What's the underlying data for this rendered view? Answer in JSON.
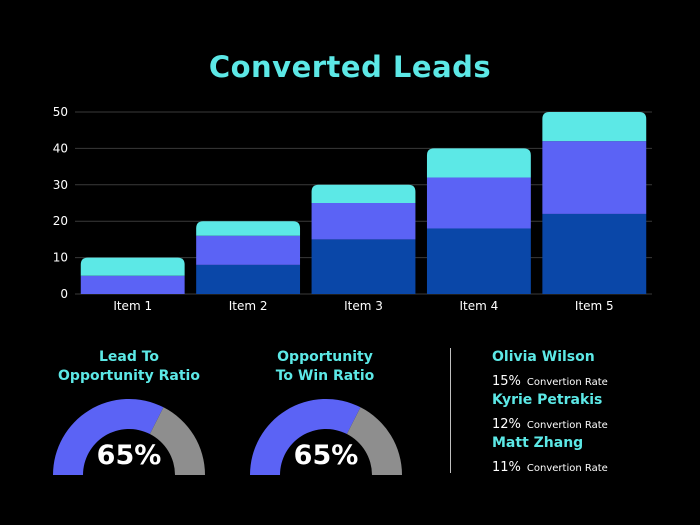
{
  "chart_data": {
    "type": "bar",
    "stacked": true,
    "title": "Converted Leads",
    "categories": [
      "Item 1",
      "Item 2",
      "Item 3",
      "Item 4",
      "Item 5"
    ],
    "series": [
      {
        "values": [
          0,
          8,
          15,
          18,
          22
        ],
        "color": "#0a47a8"
      },
      {
        "values": [
          5,
          8,
          10,
          14,
          20
        ],
        "color": "#5b63f5"
      },
      {
        "values": [
          5,
          4,
          5,
          8,
          8
        ],
        "color": "#5ce8e6"
      }
    ],
    "ylim": [
      0,
      50
    ],
    "yticks": [
      0,
      10,
      20,
      30,
      40,
      50
    ],
    "grid": true
  },
  "gauges": [
    {
      "label_line1": "Lead To",
      "label_line2": "Opportunity Ratio",
      "value": 65,
      "display": "65%"
    },
    {
      "label_line1": "Opportunity",
      "label_line2": "To Win Ratio",
      "value": 65,
      "display": "65%"
    }
  ],
  "gauge_colors": {
    "fill": "#5b63f5",
    "rest": "#8e8e8e"
  },
  "people": [
    {
      "name": "Olivia Wilson",
      "rate": "15%",
      "rate_label": "Convertion Rate"
    },
    {
      "name": "Kyrie Petrakis",
      "rate": "12%",
      "rate_label": "Convertion Rate"
    },
    {
      "name": "Matt Zhang",
      "rate": "11%",
      "rate_label": "Convertion Rate"
    }
  ]
}
